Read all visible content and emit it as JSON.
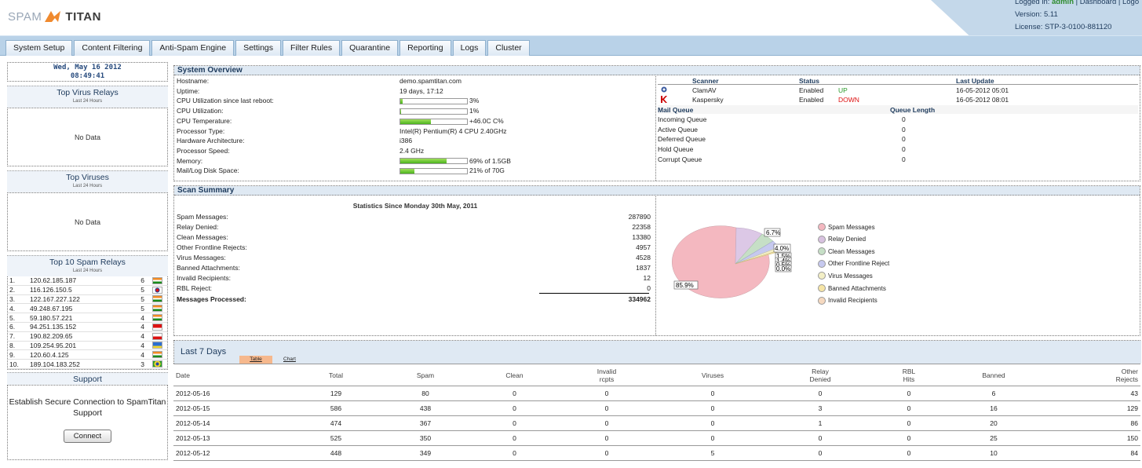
{
  "header": {
    "logo_a": "SPAM",
    "logo_b": "TITAN",
    "logged_prefix": "Logged in:",
    "user": "admin",
    "sep1": "|",
    "dashboard": "Dashboard",
    "sep2": "|",
    "logout": "Logo",
    "version": "Version: 5.11",
    "license": "License: STP-3-0100-881120"
  },
  "nav": [
    "System Setup",
    "Content Filtering",
    "Anti-Spam Engine",
    "Settings",
    "Filter Rules",
    "Quarantine",
    "Reporting",
    "Logs",
    "Cluster"
  ],
  "sidebar": {
    "date": "Wed, May 16 2012",
    "time": "08:49:41",
    "virus_relays": {
      "title": "Top Virus Relays",
      "sub": "Last 24 Hours",
      "body": "No Data"
    },
    "viruses": {
      "title": "Top Viruses",
      "sub": "Last 24 Hours",
      "body": "No Data"
    },
    "spam_relays": {
      "title": "Top 10 Spam Relays",
      "sub": "Last 24 Hours",
      "rows": [
        {
          "n": "1.",
          "ip": "120.62.185.187",
          "c": "6",
          "flag": "in"
        },
        {
          "n": "2.",
          "ip": "116.126.150.5",
          "c": "5",
          "flag": "kr"
        },
        {
          "n": "3.",
          "ip": "122.167.227.122",
          "c": "5",
          "flag": "in"
        },
        {
          "n": "4.",
          "ip": "49.248.67.195",
          "c": "5",
          "flag": "in"
        },
        {
          "n": "5.",
          "ip": "59.180.57.221",
          "c": "4",
          "flag": "in"
        },
        {
          "n": "6.",
          "ip": "94.251.135.152",
          "c": "4",
          "flag": "id"
        },
        {
          "n": "7.",
          "ip": "190.82.209.65",
          "c": "4",
          "flag": "cl"
        },
        {
          "n": "8.",
          "ip": "109.254.95.201",
          "c": "4",
          "flag": "ua"
        },
        {
          "n": "9.",
          "ip": "120.60.4.125",
          "c": "4",
          "flag": "in"
        },
        {
          "n": "10.",
          "ip": "189.104.183.252",
          "c": "3",
          "flag": "br"
        }
      ]
    },
    "support": {
      "title": "Support",
      "text": "Establish Secure Connection to SpamTitan Support",
      "button": "Connect"
    }
  },
  "overview": {
    "title": "System Overview",
    "rows": [
      {
        "k": "Hostname:",
        "v": "demo.spamtitan.com"
      },
      {
        "k": "Uptime:",
        "v": "19 days, 17:12"
      },
      {
        "k": "CPU Utilization since last reboot:",
        "v": "3%",
        "bar": 0.03
      },
      {
        "k": "CPU Utilization:",
        "v": "1%",
        "bar": 0.01
      },
      {
        "k": "CPU Temperature:",
        "v": "+46.0C C%",
        "bar": 0.46
      },
      {
        "k": "Processor Type:",
        "v": "Intel(R) Pentium(R) 4 CPU 2.40GHz"
      },
      {
        "k": "Hardware Architecture:",
        "v": "i386"
      },
      {
        "k": "Processor Speed:",
        "v": "2.4 GHz"
      },
      {
        "k": "Memory:",
        "v": "69% of 1.5GB",
        "bar": 0.69
      },
      {
        "k": "Mail/Log Disk Space:",
        "v": "21% of 70G",
        "bar": 0.21
      }
    ],
    "scan_headers": [
      "Scanner",
      "Status",
      "",
      "Last Update"
    ],
    "scanners": [
      {
        "name": "ClamAV",
        "status": "Enabled",
        "state": "UP",
        "updated": "16-05-2012 05:01",
        "icon": "clamav-icon"
      },
      {
        "name": "Kaspersky",
        "status": "Enabled",
        "state": "DOWN",
        "updated": "16-05-2012 08:01",
        "icon": "kaspersky-icon"
      }
    ],
    "queue_headers": [
      "Mail Queue",
      "Queue Length"
    ],
    "queues": [
      [
        "Incoming Queue",
        "0"
      ],
      [
        "Active Queue",
        "0"
      ],
      [
        "Deferred Queue",
        "0"
      ],
      [
        "Hold Queue",
        "0"
      ],
      [
        "Corrupt Queue",
        "0"
      ]
    ]
  },
  "scan": {
    "title": "Scan Summary",
    "since": "Statistics Since Monday 30th May, 2011",
    "rows": [
      [
        "Spam Messages:",
        "287890"
      ],
      [
        "Relay Denied:",
        "22358"
      ],
      [
        "Clean Messages:",
        "13380"
      ],
      [
        "Other Frontline Rejects:",
        "4957"
      ],
      [
        "Virus Messages:",
        "4528"
      ],
      [
        "Banned Attachments:",
        "1837"
      ],
      [
        "Invalid Recipients:",
        "12"
      ],
      [
        "RBL Reject:",
        "0"
      ]
    ],
    "total_label": "Messages Processed:",
    "total": "334962",
    "pie_labels": [
      "85.9%",
      "6.7%",
      "4.0%",
      "1.5%",
      "1.4%",
      "0.5%",
      "0.0%"
    ],
    "legend": [
      "Spam Messages",
      "Relay Denied",
      "Clean Messages",
      "Other Frontline Reject",
      "Virus Messages",
      "Banned Attachments",
      "Invalid Recipients"
    ],
    "legend_colors": [
      "#f4b8c0",
      "#d8c2e0",
      "#c6dfc6",
      "#c6c9ef",
      "#f3efc6",
      "#f6e5a6",
      "#f6d9c0"
    ]
  },
  "days": {
    "title": "Last 7 Days",
    "tab_table": "Table",
    "tab_chart": "Chart",
    "cols": [
      [
        "Date",
        ""
      ],
      [
        "Total",
        ""
      ],
      [
        "Spam",
        ""
      ],
      [
        "Clean",
        ""
      ],
      [
        "Invalid",
        "rcpts"
      ],
      [
        "Viruses",
        ""
      ],
      [
        "Relay",
        "Denied"
      ],
      [
        "RBL",
        "Hits"
      ],
      [
        "Banned",
        ""
      ],
      [
        "Other",
        "Rejects"
      ]
    ],
    "rows": [
      [
        "2012-05-16",
        "129",
        "80",
        "0",
        "0",
        "0",
        "0",
        "0",
        "6",
        "43"
      ],
      [
        "2012-05-15",
        "586",
        "438",
        "0",
        "0",
        "0",
        "3",
        "0",
        "16",
        "129"
      ],
      [
        "2012-05-14",
        "474",
        "367",
        "0",
        "0",
        "0",
        "1",
        "0",
        "20",
        "86"
      ],
      [
        "2012-05-13",
        "525",
        "350",
        "0",
        "0",
        "0",
        "0",
        "0",
        "25",
        "150"
      ],
      [
        "2012-05-12",
        "448",
        "349",
        "0",
        "0",
        "5",
        "0",
        "0",
        "10",
        "84"
      ]
    ]
  }
}
